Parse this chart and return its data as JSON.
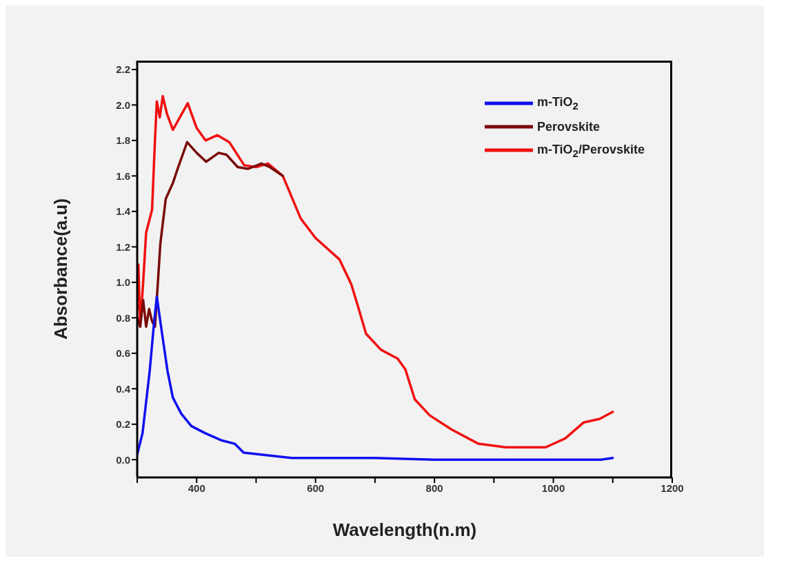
{
  "chart_data": {
    "type": "line",
    "xlabel": "Wavelength(n.m)",
    "ylabel": "Absorbance(a.u)",
    "xlim": [
      300,
      1200
    ],
    "xticks": [
      {
        "value": 300,
        "label": null
      },
      400,
      {
        "value": 500,
        "label": null
      },
      600,
      {
        "value": 700,
        "label": null
      },
      800,
      {
        "value": 900,
        "label": null
      },
      1000,
      {
        "value": 1100,
        "label": null
      },
      1200
    ],
    "ylim": [
      -0.1,
      2.25
    ],
    "yticks": [
      "0.0",
      0.2,
      0.4,
      0.6,
      0.8,
      "1.0",
      1.2,
      1.4,
      1.6,
      1.8,
      "2.0",
      2.2
    ],
    "grid": false,
    "legend": "top right",
    "marker": "none",
    "line_style": "solid",
    "series": [
      {
        "name": "m-TiO$_{2}$",
        "color": "#1010f0",
        "x": [
          300,
          309,
          321,
          328,
          333,
          341,
          351,
          360,
          374,
          391,
          414,
          441,
          464,
          479,
          505,
          560,
          700,
          800,
          1000,
          1080,
          1100
        ],
        "values": [
          0.03,
          0.15,
          0.5,
          0.76,
          0.92,
          0.73,
          0.5,
          0.35,
          0.26,
          0.19,
          0.15,
          0.11,
          0.09,
          0.04,
          0.03,
          0.01,
          0.01,
          0.0,
          0.0,
          0.0,
          0.01
        ]
      },
      {
        "name": "Perovskite",
        "color": "#7a0a0a",
        "x": [
          300,
          305,
          310,
          315,
          320,
          325,
          330,
          339,
          348,
          360,
          369,
          384,
          400,
          416,
          437,
          450,
          469,
          486,
          509,
          523,
          545
        ],
        "values": [
          0.8,
          0.75,
          0.9,
          0.75,
          0.85,
          0.78,
          0.75,
          1.22,
          1.47,
          1.56,
          1.65,
          1.79,
          1.73,
          1.68,
          1.73,
          1.72,
          1.65,
          1.64,
          1.67,
          1.65,
          1.6
        ]
      },
      {
        "name": "m-TiO$_{2}$/Perovskite",
        "color": "#f01010",
        "x": [
          300,
          302,
          305,
          310,
          315,
          325,
          330,
          333,
          338,
          343,
          350,
          360,
          385,
          400,
          415,
          435,
          455,
          480,
          500,
          520,
          545,
          575,
          600,
          640,
          660,
          670,
          685,
          710,
          738,
          751,
          767,
          792,
          829,
          874,
          920,
          987,
          1020,
          1051,
          1078,
          1100
        ],
        "values": [
          0.85,
          1.1,
          0.75,
          1.0,
          1.28,
          1.41,
          1.81,
          2.02,
          1.93,
          2.05,
          1.95,
          1.86,
          2.01,
          1.87,
          1.8,
          1.83,
          1.79,
          1.66,
          1.65,
          1.67,
          1.6,
          1.36,
          1.25,
          1.13,
          0.99,
          0.88,
          0.71,
          0.62,
          0.57,
          0.51,
          0.34,
          0.25,
          0.17,
          0.09,
          0.07,
          0.07,
          0.12,
          0.21,
          0.23,
          0.27
        ]
      }
    ]
  }
}
